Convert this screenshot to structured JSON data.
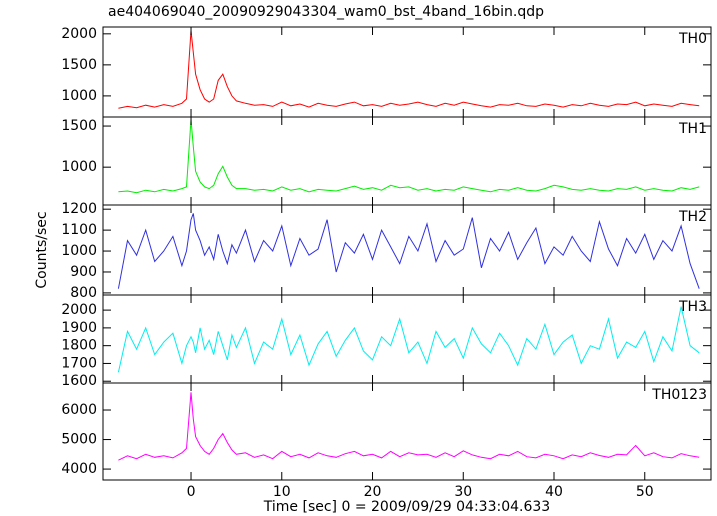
{
  "chart_data": [
    {
      "type": "line",
      "title": "ae404069040_20090929043304_wam0_bst_4band_16bin.qdp",
      "x": [
        -8,
        -7,
        -6,
        -5,
        -4,
        -3,
        -2,
        -1,
        -0.5,
        0,
        0.25,
        0.5,
        1,
        1.5,
        2,
        2.5,
        3,
        3.5,
        4,
        4.5,
        5,
        6,
        7,
        8,
        9,
        10,
        11,
        12,
        13,
        14,
        15,
        16,
        17,
        18,
        19,
        20,
        21,
        22,
        23,
        24,
        25,
        26,
        27,
        28,
        29,
        30,
        31,
        32,
        33,
        34,
        35,
        36,
        37,
        38,
        39,
        40,
        41,
        42,
        43,
        44,
        45,
        46,
        47,
        48,
        49,
        50,
        51,
        52,
        53,
        54,
        55,
        56
      ],
      "xlim": [
        -9.7,
        57.3
      ],
      "xticks": [
        0,
        10,
        20,
        30,
        40,
        50
      ],
      "ylim": [
        660,
        2110
      ],
      "yticks": [
        1000,
        1500,
        2000
      ],
      "series": [
        {
          "name": "TH0",
          "color": "#ff0000",
          "values": [
            800,
            830,
            810,
            850,
            820,
            860,
            830,
            880,
            950,
            2050,
            1700,
            1350,
            1100,
            950,
            900,
            950,
            1250,
            1350,
            1150,
            1000,
            920,
            880,
            850,
            860,
            830,
            900,
            840,
            870,
            820,
            880,
            850,
            830,
            870,
            900,
            840,
            860,
            830,
            880,
            850,
            870,
            900,
            860,
            830,
            880,
            850,
            900,
            870,
            840,
            820,
            860,
            850,
            880,
            840,
            830,
            870,
            850,
            820,
            860,
            840,
            880,
            850,
            830,
            870,
            860,
            900,
            840,
            870,
            850,
            830,
            880,
            860,
            840
          ]
        }
      ]
    },
    {
      "type": "line",
      "x": [
        -8,
        -7,
        -6,
        -5,
        -4,
        -3,
        -2,
        -1,
        -0.5,
        0,
        0.25,
        0.5,
        1,
        1.5,
        2,
        2.5,
        3,
        3.5,
        4,
        4.5,
        5,
        6,
        7,
        8,
        9,
        10,
        11,
        12,
        13,
        14,
        15,
        16,
        17,
        18,
        19,
        20,
        21,
        22,
        23,
        24,
        25,
        26,
        27,
        28,
        29,
        30,
        31,
        32,
        33,
        34,
        35,
        36,
        37,
        38,
        39,
        40,
        41,
        42,
        43,
        44,
        45,
        46,
        47,
        48,
        49,
        50,
        51,
        52,
        53,
        54,
        55,
        56
      ],
      "xlim": [
        -9.7,
        57.3
      ],
      "xticks": [
        0,
        10,
        20,
        30,
        40,
        50
      ],
      "ylim": [
        540,
        1610
      ],
      "yticks": [
        1000,
        1500
      ],
      "series": [
        {
          "name": "TH1",
          "color": "#00ee00",
          "values": [
            700,
            710,
            690,
            720,
            700,
            730,
            710,
            740,
            760,
            1580,
            1250,
            950,
            820,
            760,
            740,
            780,
            920,
            1010,
            880,
            780,
            740,
            740,
            720,
            730,
            710,
            760,
            720,
            740,
            700,
            730,
            720,
            710,
            740,
            770,
            730,
            750,
            720,
            780,
            750,
            760,
            720,
            740,
            710,
            730,
            720,
            760,
            740,
            720,
            700,
            730,
            720,
            750,
            720,
            710,
            740,
            780,
            760,
            730,
            720,
            740,
            720,
            710,
            740,
            730,
            760,
            720,
            740,
            720,
            710,
            750,
            730,
            760
          ]
        }
      ]
    },
    {
      "type": "line",
      "ylabel": "Counts/sec",
      "x": [
        -8,
        -7,
        -6,
        -5,
        -4,
        -3,
        -2,
        -1,
        -0.5,
        0,
        0.25,
        0.5,
        1,
        1.5,
        2,
        2.5,
        3,
        3.5,
        4,
        4.5,
        5,
        6,
        7,
        8,
        9,
        10,
        11,
        12,
        13,
        14,
        15,
        16,
        17,
        18,
        19,
        20,
        21,
        22,
        23,
        24,
        25,
        26,
        27,
        28,
        29,
        30,
        31,
        32,
        33,
        34,
        35,
        36,
        37,
        38,
        39,
        40,
        41,
        42,
        43,
        44,
        45,
        46,
        47,
        48,
        49,
        50,
        51,
        52,
        53,
        54,
        55,
        56
      ],
      "xlim": [
        -9.7,
        57.3
      ],
      "xticks": [
        0,
        10,
        20,
        30,
        40,
        50
      ],
      "ylim": [
        790,
        1220
      ],
      "yticks": [
        800,
        900,
        1000,
        1100,
        1200
      ],
      "series": [
        {
          "name": "TH2",
          "color": "#3030e0",
          "values": [
            820,
            1050,
            980,
            1100,
            950,
            1000,
            1070,
            930,
            1000,
            1150,
            1180,
            1100,
            1050,
            980,
            1020,
            960,
            1080,
            1000,
            940,
            1030,
            990,
            1100,
            950,
            1050,
            1000,
            1120,
            930,
            1060,
            980,
            1010,
            1150,
            900,
            1040,
            990,
            1080,
            960,
            1100,
            1020,
            940,
            1070,
            1000,
            1130,
            950,
            1050,
            980,
            1010,
            1160,
            920,
            1060,
            1000,
            1090,
            960,
            1040,
            1110,
            940,
            1020,
            980,
            1070,
            1000,
            950,
            1140,
            1010,
            930,
            1060,
            990,
            1080,
            960,
            1050,
            1000,
            1120,
            940,
            820
          ]
        }
      ]
    },
    {
      "type": "line",
      "x": [
        -8,
        -7,
        -6,
        -5,
        -4,
        -3,
        -2,
        -1,
        -0.5,
        0,
        0.25,
        0.5,
        1,
        1.5,
        2,
        2.5,
        3,
        3.5,
        4,
        4.5,
        5,
        6,
        7,
        8,
        9,
        10,
        11,
        12,
        13,
        14,
        15,
        16,
        17,
        18,
        19,
        20,
        21,
        22,
        23,
        24,
        25,
        26,
        27,
        28,
        29,
        30,
        31,
        32,
        33,
        34,
        35,
        36,
        37,
        38,
        39,
        40,
        41,
        42,
        43,
        44,
        45,
        46,
        47,
        48,
        49,
        50,
        51,
        52,
        53,
        54,
        55,
        56
      ],
      "xlim": [
        -9.7,
        57.3
      ],
      "xticks": [
        0,
        10,
        20,
        30,
        40,
        50
      ],
      "ylim": [
        1590,
        2085
      ],
      "yticks": [
        1600,
        1700,
        1800,
        1900,
        2000
      ],
      "series": [
        {
          "name": "TH3",
          "color": "#00eeee",
          "values": [
            1650,
            1880,
            1780,
            1900,
            1750,
            1820,
            1870,
            1700,
            1800,
            1850,
            1820,
            1760,
            1900,
            1780,
            1830,
            1750,
            1880,
            1800,
            1720,
            1860,
            1790,
            1900,
            1700,
            1820,
            1780,
            1950,
            1750,
            1860,
            1690,
            1810,
            1880,
            1740,
            1830,
            1900,
            1770,
            1720,
            1850,
            1800,
            1950,
            1760,
            1820,
            1700,
            1880,
            1790,
            1840,
            1730,
            1900,
            1810,
            1760,
            1870,
            1800,
            1690,
            1840,
            1780,
            1920,
            1750,
            1820,
            1860,
            1700,
            1800,
            1780,
            1950,
            1730,
            1820,
            1790,
            1880,
            1710,
            1850,
            1770,
            2020,
            1800,
            1760
          ]
        }
      ]
    },
    {
      "type": "line",
      "xlabel": "Time [sec] 0 = 2009/09/29 04:33:04.633",
      "x": [
        -8,
        -7,
        -6,
        -5,
        -4,
        -3,
        -2,
        -1,
        -0.5,
        0,
        0.25,
        0.5,
        1,
        1.5,
        2,
        2.5,
        3,
        3.5,
        4,
        4.5,
        5,
        6,
        7,
        8,
        9,
        10,
        11,
        12,
        13,
        14,
        15,
        16,
        17,
        18,
        19,
        20,
        21,
        22,
        23,
        24,
        25,
        26,
        27,
        28,
        29,
        30,
        31,
        32,
        33,
        34,
        35,
        36,
        37,
        38,
        39,
        40,
        41,
        42,
        43,
        44,
        45,
        46,
        47,
        48,
        49,
        50,
        51,
        52,
        53,
        54,
        55,
        56
      ],
      "xlim": [
        -9.7,
        57.3
      ],
      "xticks": [
        0,
        10,
        20,
        30,
        40,
        50
      ],
      "ylim": [
        3630,
        6915
      ],
      "yticks": [
        4000,
        5000,
        6000
      ],
      "series": [
        {
          "name": "TH0123",
          "color": "#ff00ff",
          "values": [
            4300,
            4450,
            4350,
            4500,
            4400,
            4450,
            4380,
            4550,
            4700,
            6600,
            5700,
            5100,
            4800,
            4600,
            4500,
            4700,
            5000,
            5200,
            4900,
            4650,
            4500,
            4550,
            4400,
            4480,
            4350,
            4600,
            4420,
            4500,
            4380,
            4550,
            4450,
            4400,
            4520,
            4600,
            4450,
            4500,
            4380,
            4600,
            4420,
            4550,
            4480,
            4500,
            4400,
            4550,
            4420,
            4620,
            4480,
            4400,
            4350,
            4500,
            4450,
            4600,
            4420,
            4380,
            4500,
            4450,
            4350,
            4480,
            4420,
            4550,
            4460,
            4400,
            4500,
            4480,
            4800,
            4450,
            4550,
            4420,
            4380,
            4520,
            4450,
            4400
          ]
        }
      ]
    }
  ]
}
